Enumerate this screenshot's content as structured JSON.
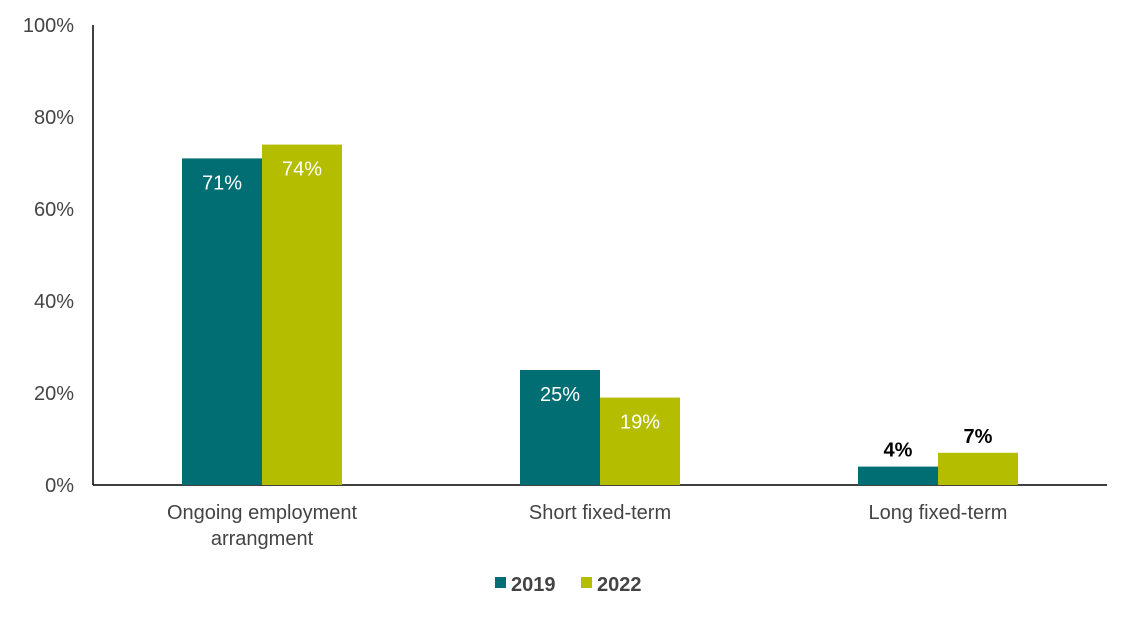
{
  "chart_data": {
    "type": "bar",
    "title": "",
    "xlabel": "",
    "ylabel": "",
    "categories": [
      [
        "Ongoing employment",
        "arrangment"
      ],
      [
        "Short fixed-term"
      ],
      [
        "Long fixed-term"
      ]
    ],
    "series": [
      {
        "name": "2019",
        "values": [
          71,
          25,
          4
        ],
        "labels": [
          "71%",
          "25%",
          "4%"
        ],
        "color": "#006E73"
      },
      {
        "name": "2022",
        "values": [
          74,
          19,
          7
        ],
        "labels": [
          "74%",
          "19%",
          "7%"
        ],
        "color": "#B5BD00"
      }
    ],
    "ylim": [
      0,
      100
    ],
    "yticks": [
      0,
      20,
      40,
      60,
      80,
      100
    ],
    "ytick_labels": [
      "0%",
      "20%",
      "40%",
      "60%",
      "80%",
      "100%"
    ],
    "grid": false,
    "legend": "bottom"
  }
}
